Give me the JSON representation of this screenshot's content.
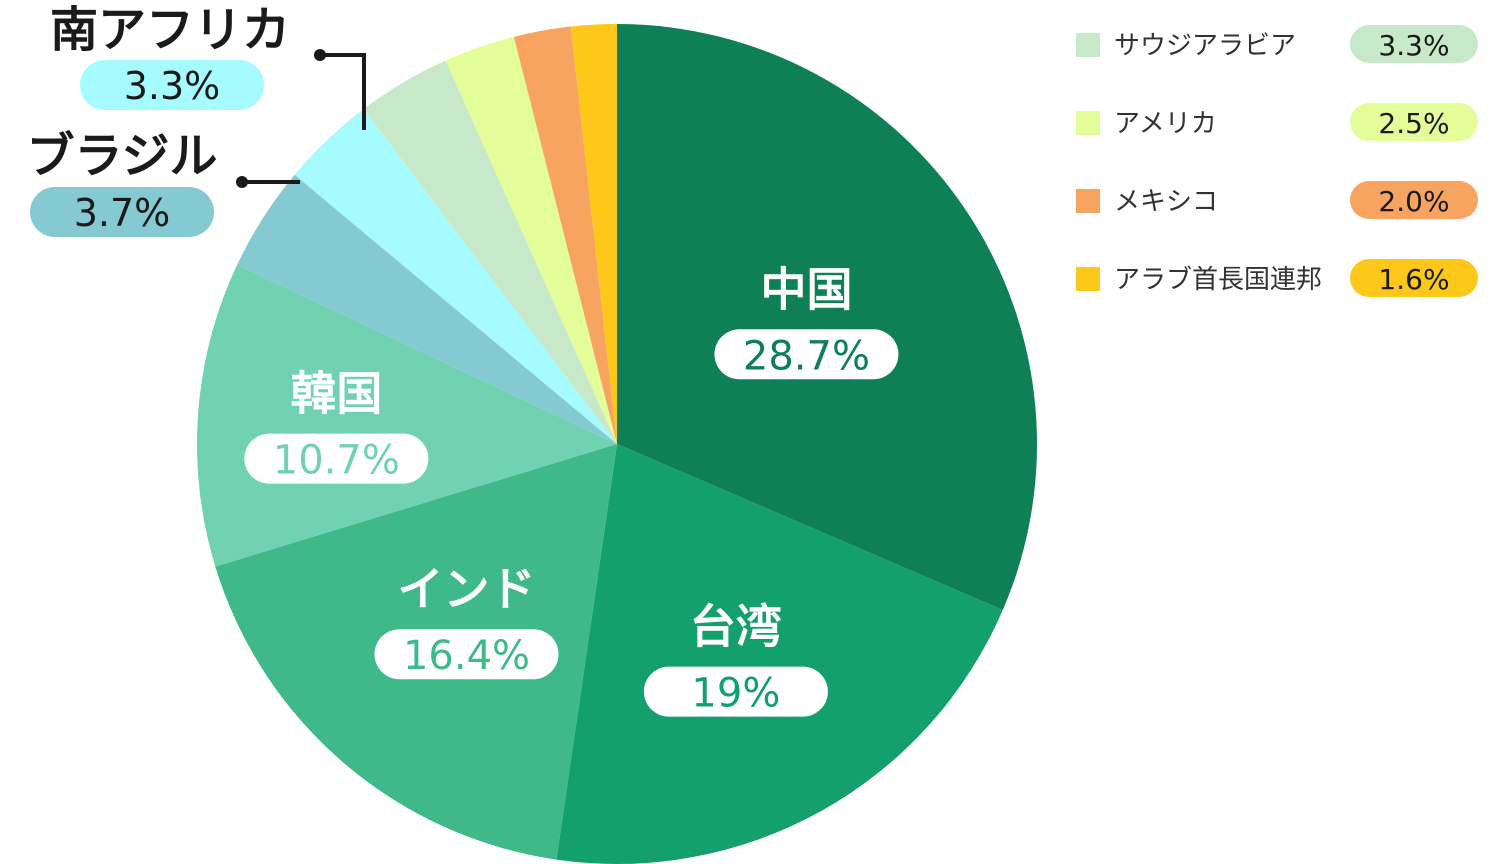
{
  "chart_data": {
    "type": "pie",
    "title": "",
    "start": "top",
    "direction": "clockwise",
    "slices": [
      {
        "label": "中国",
        "value": 28.7,
        "display": "28.7%",
        "color": "#0f7f55"
      },
      {
        "label": "台湾",
        "value": 19.0,
        "display": "19%",
        "color": "#14a06c"
      },
      {
        "label": "インド",
        "value": 16.4,
        "display": "16.4%",
        "color": "#3fb98a"
      },
      {
        "label": "韓国",
        "value": 10.7,
        "display": "10.7%",
        "color": "#71d2b1"
      },
      {
        "label": "ブラジル",
        "value": 3.7,
        "display": "3.7%",
        "color": "#85cad3"
      },
      {
        "label": "南アフリカ",
        "value": 3.3,
        "display": "3.3%",
        "color": "#a5fbfd"
      },
      {
        "label": "サウジアラビア",
        "value": 3.3,
        "display": "3.3%",
        "color": "#c7e9c9"
      },
      {
        "label": "アメリカ",
        "value": 2.5,
        "display": "2.5%",
        "color": "#e3fd99"
      },
      {
        "label": "メキシコ",
        "value": 2.0,
        "display": "2.0%",
        "color": "#f6a460"
      },
      {
        "label": "アラブ首長国連邦",
        "value": 1.6,
        "display": "1.6%",
        "color": "#fdc81a"
      }
    ],
    "legend_placement": "top-right",
    "legend_items": [
      "サウジアラビア",
      "アメリカ",
      "メキシコ",
      "アラブ首長国連邦"
    ],
    "callout_items": [
      "南アフリカ",
      "ブラジル"
    ]
  }
}
